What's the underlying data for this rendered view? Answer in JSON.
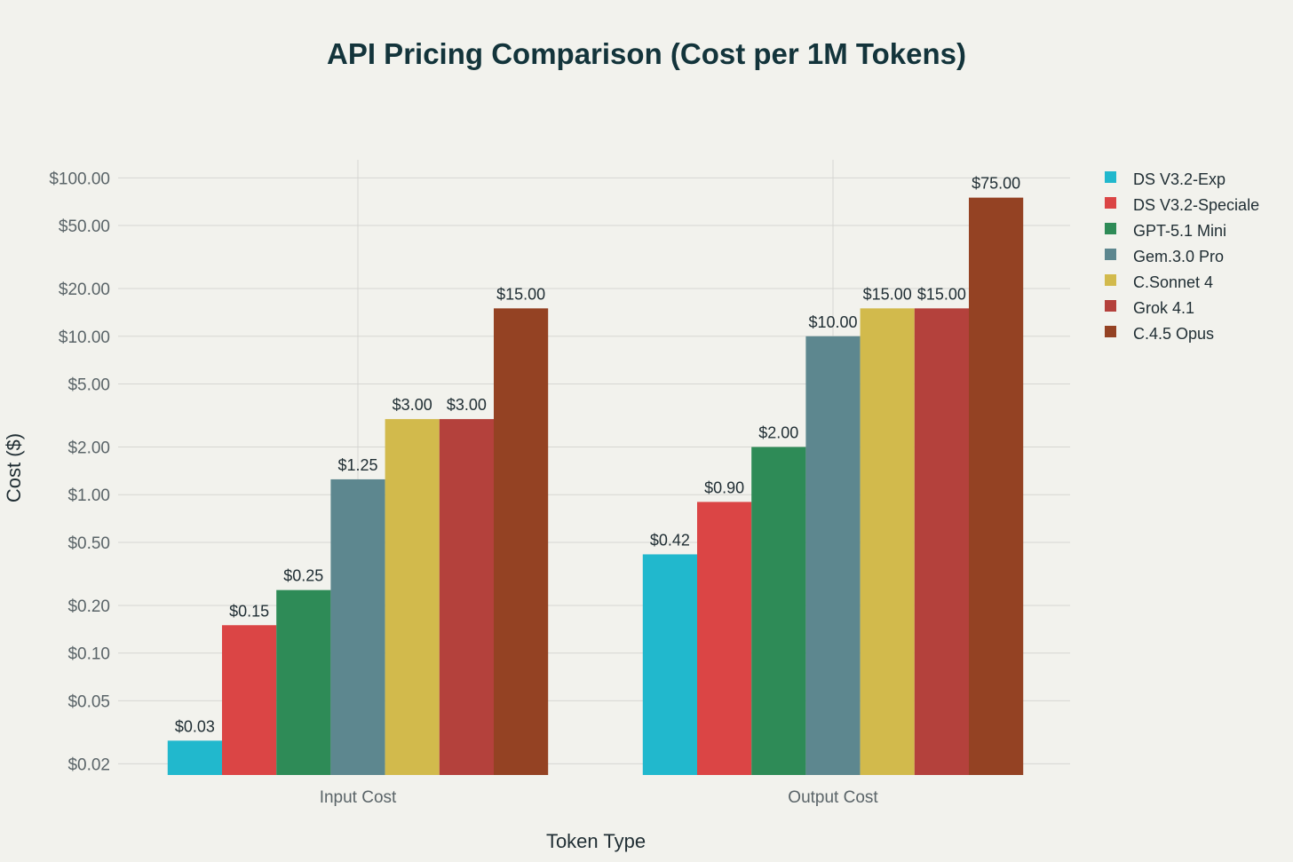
{
  "chart_data": {
    "type": "bar",
    "title": "API Pricing Comparison (Cost per 1M Tokens)",
    "xlabel": "Token Type",
    "ylabel": "Cost ($)",
    "yscale": "log",
    "ylim": [
      0.017,
      130
    ],
    "ytick_values": [
      0.02,
      0.05,
      0.1,
      0.2,
      0.5,
      1,
      2,
      5,
      10,
      20,
      50,
      100
    ],
    "ytick_labels": [
      "$0.02",
      "$0.05",
      "$0.10",
      "$0.20",
      "$0.50",
      "$1.00",
      "$2.00",
      "$5.00",
      "$10.00",
      "$20.00",
      "$50.00",
      "$100.00"
    ],
    "categories": [
      "Input Cost",
      "Output Cost"
    ],
    "legend_position": "right",
    "series": [
      {
        "name": "DS V3.2-Exp",
        "color": "#21b8cd",
        "values": [
          0.028,
          0.42
        ],
        "labels": [
          "$0.03",
          "$0.42"
        ]
      },
      {
        "name": "DS V3.2-Speciale",
        "color": "#db4545",
        "values": [
          0.15,
          0.9
        ],
        "labels": [
          "$0.15",
          "$0.90"
        ]
      },
      {
        "name": "GPT-5.1 Mini",
        "color": "#2e8b57",
        "values": [
          0.25,
          2
        ],
        "labels": [
          "$0.25",
          "$2.00"
        ]
      },
      {
        "name": "Gem.3.0 Pro",
        "color": "#5d878f",
        "values": [
          1.25,
          10
        ],
        "labels": [
          "$1.25",
          "$10.00"
        ]
      },
      {
        "name": "C.Sonnet 4",
        "color": "#d2ba4c",
        "values": [
          3,
          15
        ],
        "labels": [
          "$3.00",
          "$15.00"
        ]
      },
      {
        "name": "Grok 4.1",
        "color": "#b4413c",
        "values": [
          3,
          15
        ],
        "labels": [
          "$3.00",
          "$15.00"
        ]
      },
      {
        "name": "C.4.5 Opus",
        "color": "#944223",
        "values": [
          15,
          75
        ],
        "labels": [
          "$15.00",
          "$75.00"
        ]
      }
    ]
  }
}
